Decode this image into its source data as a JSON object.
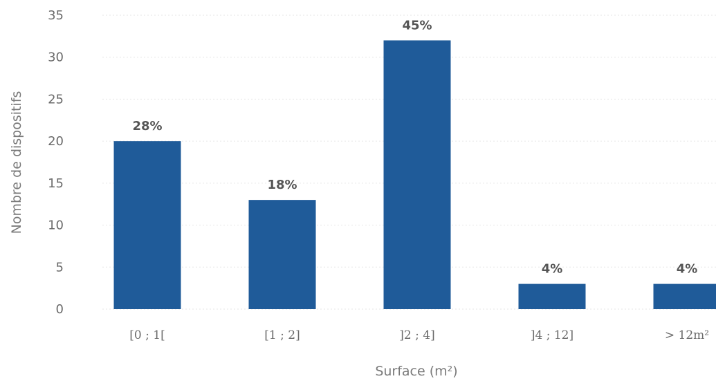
{
  "chart_data": {
    "type": "bar",
    "categories": [
      "[0 ; 1[",
      "[1 ; 2]",
      "]2 ; 4]",
      "]4 ; 12]",
      "> 12m²"
    ],
    "values": [
      20,
      13,
      32,
      3,
      3
    ],
    "data_labels": [
      "28%",
      "18%",
      "45%",
      "4%",
      "4%"
    ],
    "title": "",
    "xlabel": "Surface (m²)",
    "ylabel": "Nombre de dispositifs",
    "ylim": [
      0,
      35
    ],
    "yticks": [
      0,
      5,
      10,
      15,
      20,
      25,
      30,
      35
    ],
    "grid": true,
    "bar_color": "#1f5b99",
    "grid_color": "#e6e6e6"
  }
}
